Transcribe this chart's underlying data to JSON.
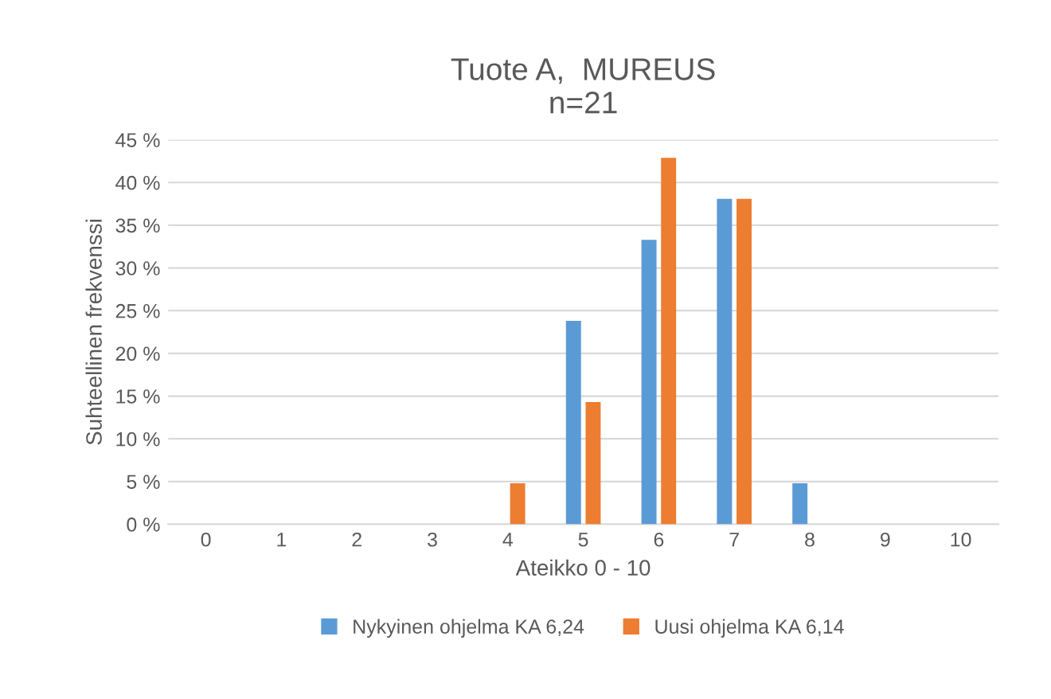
{
  "chart_data": {
    "type": "bar",
    "title": "Tuote A,  MUREUS\nn=21",
    "xlabel": "Ateikko 0 - 10",
    "ylabel": "Suhteellinen frekvenssi",
    "categories": [
      "0",
      "1",
      "2",
      "3",
      "4",
      "5",
      "6",
      "7",
      "8",
      "9",
      "10"
    ],
    "series": [
      {
        "name": "Nykyinen ohjelma KA 6,24",
        "color": "#5b9bd5",
        "values": [
          0,
          0,
          0,
          0,
          0,
          23.8,
          33.3,
          38.1,
          4.8,
          0,
          0
        ]
      },
      {
        "name": "Uusi ohjelma KA 6,14",
        "color": "#ed7d31",
        "values": [
          0,
          0,
          0,
          0,
          4.8,
          14.3,
          42.9,
          38.1,
          0,
          0,
          0
        ]
      }
    ],
    "ylim": [
      0,
      45
    ],
    "yticks": [
      {
        "value": 0,
        "label": "0 %"
      },
      {
        "value": 5,
        "label": "5 %"
      },
      {
        "value": 10,
        "label": "10 %"
      },
      {
        "value": 15,
        "label": "15 %"
      },
      {
        "value": 20,
        "label": "20 %"
      },
      {
        "value": 25,
        "label": "25 %"
      },
      {
        "value": 30,
        "label": "30 %"
      },
      {
        "value": 35,
        "label": "35 %"
      },
      {
        "value": 40,
        "label": "40 %"
      },
      {
        "value": 45,
        "label": "45 %"
      }
    ],
    "grid": "y",
    "legend": "bottom"
  }
}
